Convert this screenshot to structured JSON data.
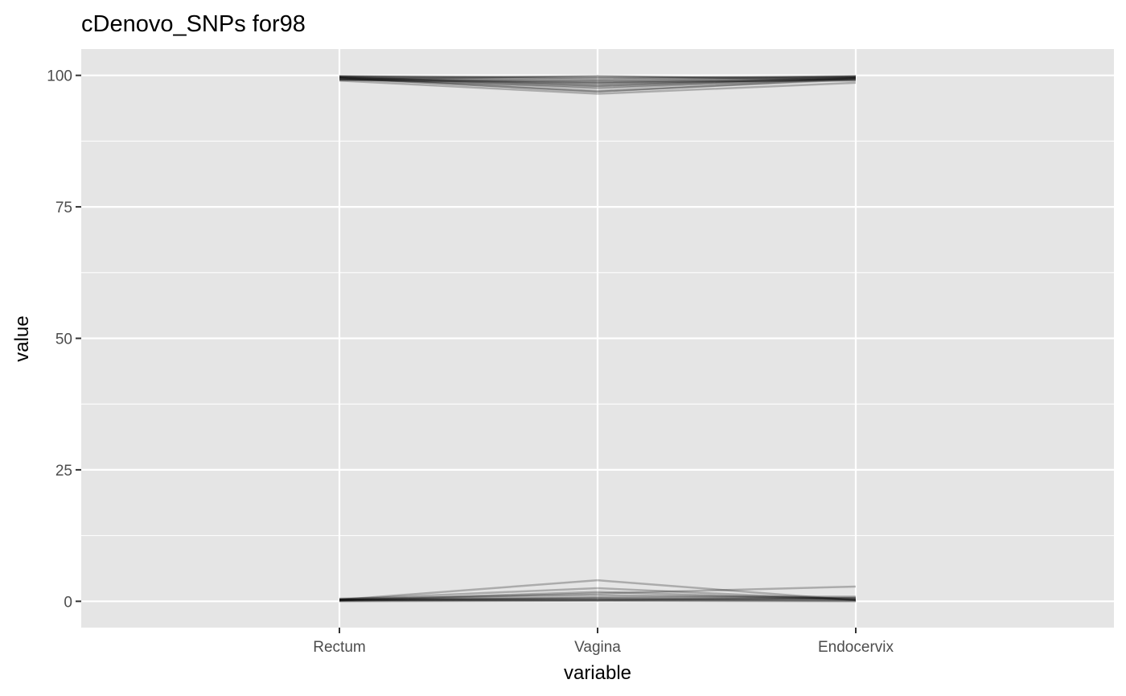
{
  "chart_data": {
    "type": "line",
    "chart_kind": "parallel-coordinates",
    "title": "cDenovo_SNPs for98",
    "xlabel": "variable",
    "ylabel": "value",
    "categories": [
      "Rectum",
      "Vagina",
      "Endocervix"
    ],
    "y_ticks": [
      0,
      25,
      50,
      75,
      100
    ],
    "ylim": [
      -5,
      105
    ],
    "grid": true,
    "panel_background": "#e5e5e5",
    "grid_color": "#ffffff",
    "line_color": "#000000",
    "line_opacity": 0.25,
    "series": [
      {
        "values": [
          99.5,
          99.0,
          99.6
        ]
      },
      {
        "values": [
          99.8,
          99.5,
          99.8
        ]
      },
      {
        "values": [
          99.2,
          98.5,
          99.3
        ]
      },
      {
        "values": [
          99.6,
          97.5,
          99.5
        ]
      },
      {
        "values": [
          99.0,
          96.5,
          98.6
        ]
      },
      {
        "values": [
          99.4,
          97.0,
          99.2
        ]
      },
      {
        "values": [
          99.7,
          98.0,
          99.7
        ]
      },
      {
        "values": [
          99.3,
          97.8,
          99.4
        ]
      },
      {
        "values": [
          99.9,
          99.2,
          99.9
        ]
      },
      {
        "values": [
          99.1,
          98.8,
          99.0
        ]
      },
      {
        "values": [
          99.6,
          98.2,
          99.5
        ]
      },
      {
        "values": [
          99.8,
          99.7,
          99.6
        ]
      },
      {
        "values": [
          99.5,
          96.9,
          99.4
        ]
      },
      {
        "values": [
          99.2,
          99.9,
          99.1
        ]
      },
      {
        "values": [
          99.7,
          98.6,
          99.8
        ]
      },
      {
        "values": [
          0.3,
          4.0,
          0.2
        ]
      },
      {
        "values": [
          0.4,
          2.5,
          0.3
        ]
      },
      {
        "values": [
          0.2,
          1.5,
          2.8
        ]
      },
      {
        "values": [
          0.5,
          1.2,
          0.6
        ]
      },
      {
        "values": [
          0.1,
          0.8,
          0.9
        ]
      },
      {
        "values": [
          0.3,
          0.5,
          0.4
        ]
      },
      {
        "values": [
          0.2,
          0.3,
          0.2
        ]
      },
      {
        "values": [
          0.1,
          0.2,
          0.1
        ]
      },
      {
        "values": [
          0.4,
          0.6,
          0.5
        ]
      },
      {
        "values": [
          0.0,
          0.1,
          0.0
        ]
      },
      {
        "values": [
          0.2,
          1.8,
          0.3
        ]
      },
      {
        "values": [
          0.3,
          0.2,
          0.7
        ]
      }
    ]
  }
}
